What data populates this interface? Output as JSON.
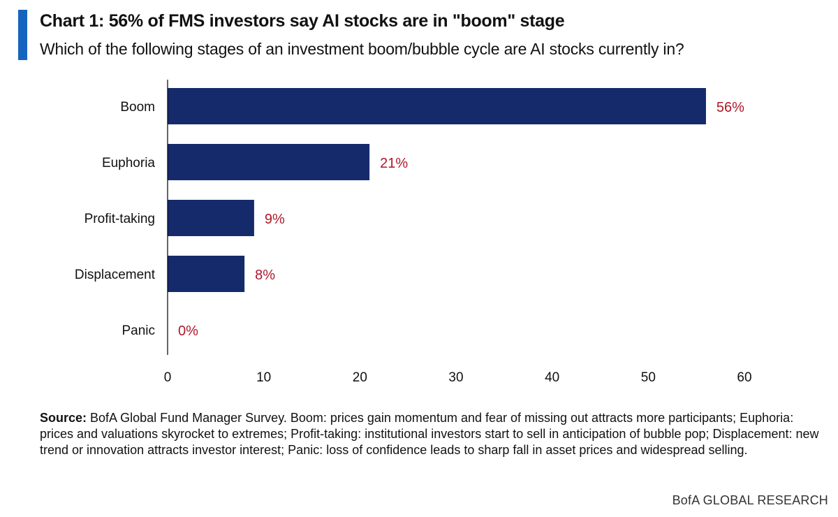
{
  "colors": {
    "accent": "#1565c0",
    "bar": "#152a6b",
    "value_label": "#b0172a",
    "axis": "#000000"
  },
  "header": {
    "title": "Chart 1: 56% of FMS investors say AI stocks are in \"boom\" stage",
    "subtitle": "Which of the following stages of an investment boom/bubble cycle are AI stocks currently in?"
  },
  "chart_data": {
    "type": "bar",
    "orientation": "horizontal",
    "categories": [
      "Boom",
      "Euphoria",
      "Profit-taking",
      "Displacement",
      "Panic"
    ],
    "values": [
      56,
      21,
      9,
      8,
      0
    ],
    "value_labels": [
      "56%",
      "21%",
      "9%",
      "8%",
      "0%"
    ],
    "xlim": [
      0,
      60
    ],
    "xticks": [
      "0",
      "10",
      "20",
      "30",
      "40",
      "50",
      "60"
    ],
    "grid": false
  },
  "footer": {
    "source_label": "Source:",
    "source_text": " BofA Global Fund Manager Survey. Boom: prices gain momentum and fear of missing out attracts more participants; Euphoria: prices and valuations skyrocket to extremes; Profit-taking: institutional investors start to sell in anticipation of bubble pop; Displacement: new trend or innovation attracts investor interest; Panic: loss of confidence leads to sharp fall in asset prices and widespread selling.",
    "brand": "BofA GLOBAL RESEARCH"
  }
}
